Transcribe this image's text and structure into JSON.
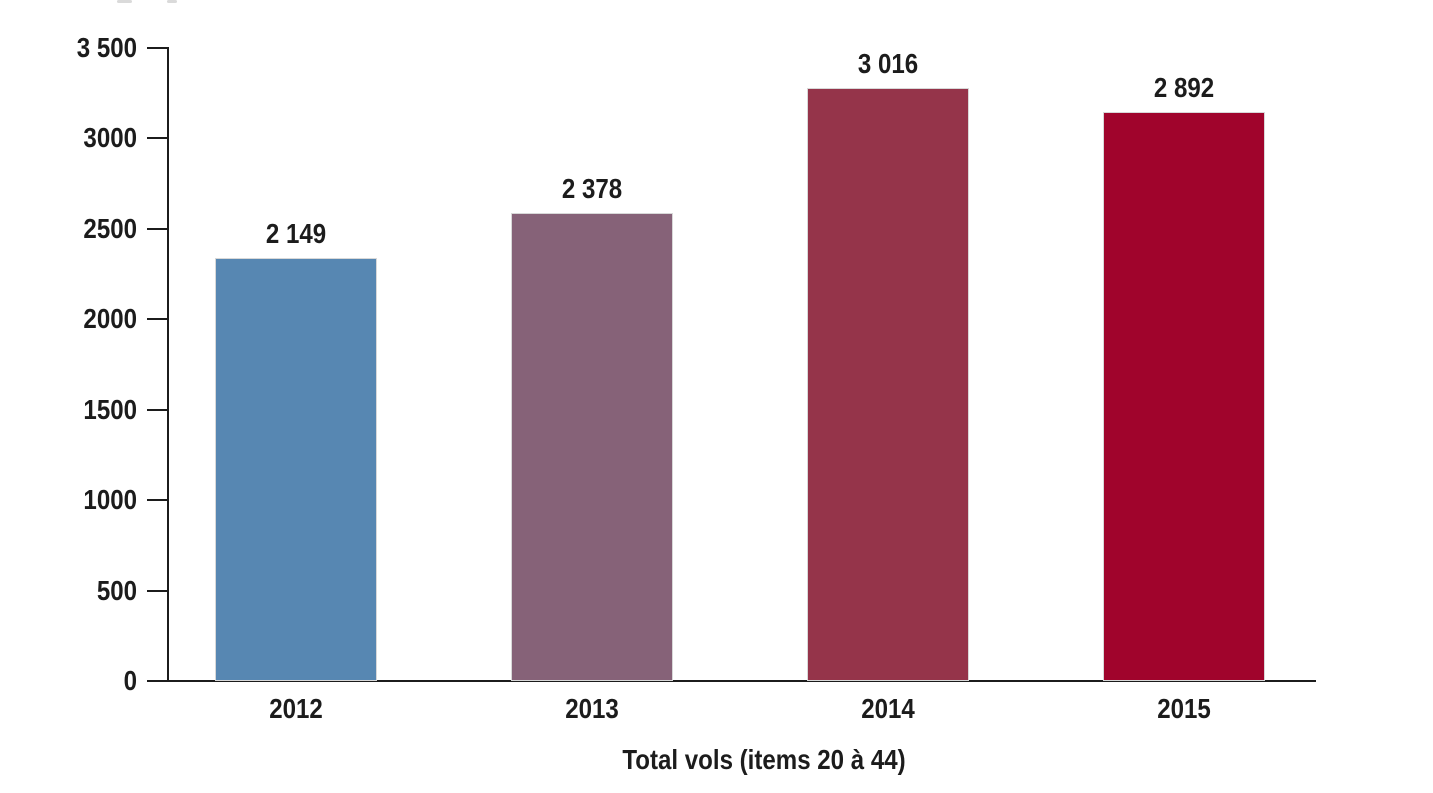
{
  "chart_data": {
    "type": "bar",
    "title": "",
    "xlabel": "Total vols (items 20 à 44)",
    "ylabel": "",
    "categories": [
      "2012",
      "2013",
      "2014",
      "2015"
    ],
    "values": [
      2149,
      2378,
      3016,
      2892
    ],
    "display_values": [
      "2 149",
      "2 378",
      "3 016",
      "2 892"
    ],
    "series": [
      {
        "name": "Total vols (items 20 à 44)",
        "values": [
          2149,
          2378,
          3016,
          2892
        ]
      }
    ],
    "bar_colors": [
      "#5787B2",
      "#866278",
      "#95344A",
      "#A0042C"
    ],
    "ylim": [
      0,
      3500
    ],
    "ytick_values": [
      0,
      500,
      1000,
      1500,
      2000,
      2500,
      3000,
      3500
    ],
    "ytick_labels": [
      "0",
      "500",
      "1000",
      "1500",
      "2000",
      "2500",
      "3000",
      "3 500"
    ],
    "grid": false,
    "legend": "none",
    "data_labels": true,
    "axis_color": "#1C1C1C",
    "text_color": "#1C1C1C",
    "bar_border_color": "#D8D8D8",
    "background": "#FFFFFF"
  }
}
